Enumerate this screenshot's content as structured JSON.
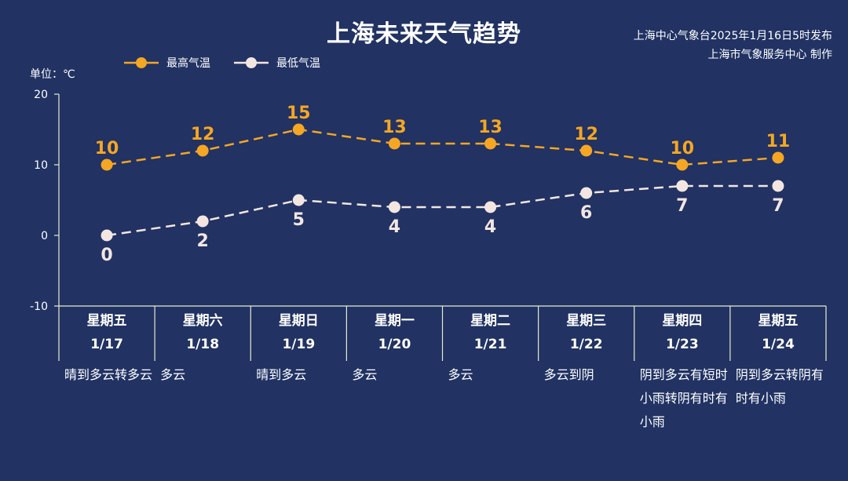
{
  "title": "上海未来天气趋势",
  "source": {
    "line1": "上海中心气象台2025年1月16日5时发布",
    "line2": "上海市气象服务中心 制作"
  },
  "unit": "单位：℃",
  "legend": {
    "high": "最高气温",
    "low": "最低气温"
  },
  "colors": {
    "high": "#f5a623",
    "low": "#f3e6e1",
    "background": "#213263"
  },
  "chart_data": {
    "type": "line",
    "categories": [
      "1/17",
      "1/18",
      "1/19",
      "1/20",
      "1/21",
      "1/22",
      "1/23",
      "1/24"
    ],
    "weekdays": [
      "星期五",
      "星期六",
      "星期日",
      "星期一",
      "星期二",
      "星期三",
      "星期四",
      "星期五"
    ],
    "weather": [
      "晴到多云转多云",
      "多云",
      "晴到多云",
      "多云",
      "多云",
      "多云到阴",
      "阴到多云有短时小雨转阴有时有小雨",
      "阴到多云转阴有时有小雨"
    ],
    "series": [
      {
        "name": "最高气温",
        "values": [
          10,
          12,
          15,
          13,
          13,
          12,
          10,
          11
        ]
      },
      {
        "name": "最低气温",
        "values": [
          0,
          2,
          5,
          4,
          4,
          6,
          7,
          7
        ]
      }
    ],
    "ylim": [
      -10,
      20
    ],
    "yticks": [
      -10,
      0,
      10,
      20
    ],
    "line_style": "dashed",
    "data_labels": true
  }
}
